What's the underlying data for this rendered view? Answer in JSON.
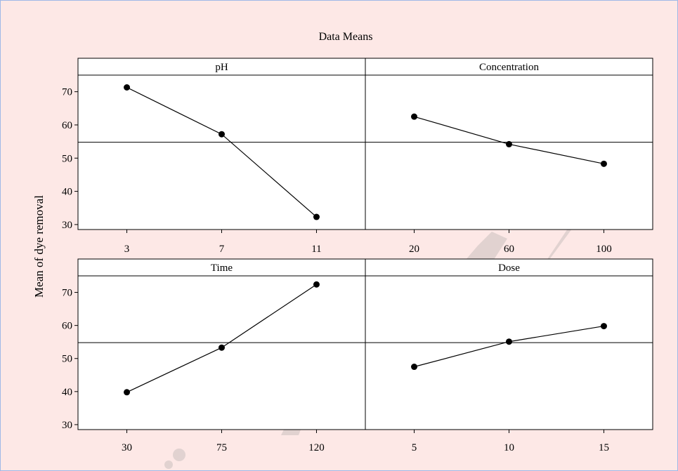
{
  "chart_data": {
    "type": "line",
    "title": "Data Means",
    "ylabel": "Mean of dye removal",
    "ylim": [
      28.5,
      75
    ],
    "yticks": [
      30,
      40,
      50,
      60,
      70
    ],
    "reference_line": 54.8,
    "watermark": "Archive of SID",
    "panels": [
      {
        "name": "pH",
        "categories": [
          "3",
          "7",
          "11"
        ],
        "values": [
          71.3,
          57.2,
          32.3
        ]
      },
      {
        "name": "Concentration",
        "categories": [
          "20",
          "60",
          "100"
        ],
        "values": [
          62.5,
          54.2,
          48.3
        ]
      },
      {
        "name": "Time",
        "categories": [
          "30",
          "75",
          "120"
        ],
        "values": [
          39.8,
          53.3,
          72.4
        ]
      },
      {
        "name": "Dose",
        "categories": [
          "5",
          "10",
          "15"
        ],
        "values": [
          47.5,
          55.1,
          59.8
        ]
      }
    ]
  }
}
